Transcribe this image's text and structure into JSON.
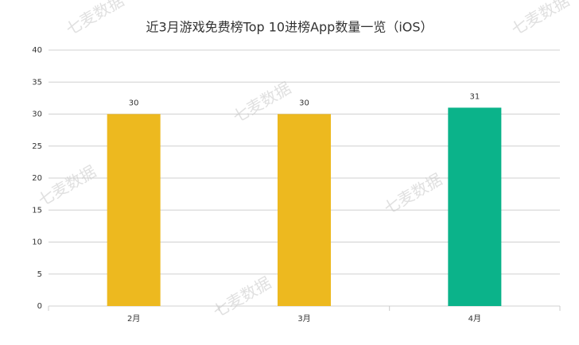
{
  "chart_data": {
    "type": "bar",
    "title": "近3月游戏免费榜Top 10进榜App数量一览（iOS）",
    "categories": [
      "2月",
      "3月",
      "4月"
    ],
    "values": [
      30,
      30,
      31
    ],
    "colors": [
      "#edb91f",
      "#edb91f",
      "#0bb38a"
    ],
    "ylim": [
      0,
      40
    ],
    "yticks": [
      0,
      5,
      10,
      15,
      20,
      25,
      30,
      35,
      40
    ],
    "grid": true,
    "watermark": "七麦数据"
  }
}
